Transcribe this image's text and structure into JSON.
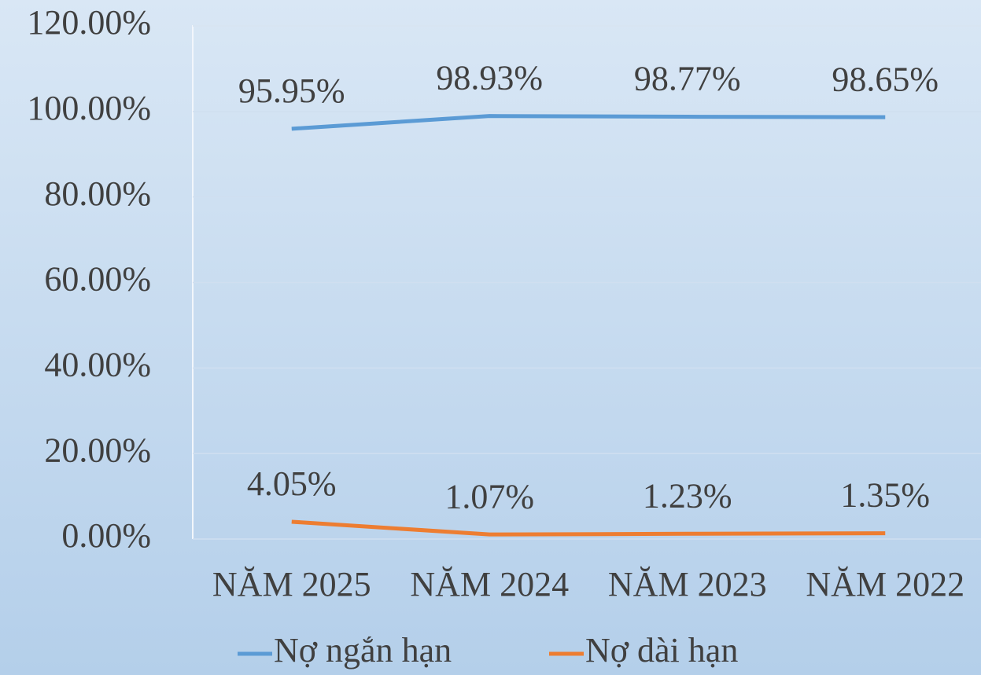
{
  "chart_data": {
    "type": "line",
    "categories": [
      "NĂM 2025",
      "NĂM 2024",
      "NĂM 2023",
      "NĂM 2022"
    ],
    "series": [
      {
        "name": "Nợ ngắn hạn",
        "color": "#5b9bd5",
        "values": [
          95.95,
          98.93,
          98.77,
          98.65
        ],
        "value_labels": [
          "95.95%",
          "98.93%",
          "98.77%",
          "98.65%"
        ]
      },
      {
        "name": "Nợ dài hạn",
        "color": "#ed7d31",
        "values": [
          4.05,
          1.07,
          1.23,
          1.35
        ],
        "value_labels": [
          "4.05%",
          "1.07%",
          "1.23%",
          "1.35%"
        ]
      }
    ],
    "ylim": [
      0,
      120
    ],
    "yticks": [
      {
        "value": 0,
        "label": "0.00%"
      },
      {
        "value": 20,
        "label": "20.00%"
      },
      {
        "value": 40,
        "label": "40.00%"
      },
      {
        "value": 60,
        "label": "60.00%"
      },
      {
        "value": 80,
        "label": "80.00%"
      },
      {
        "value": 100,
        "label": "100.00%"
      },
      {
        "value": 120,
        "label": "120.00%"
      }
    ],
    "grid": true,
    "legend": "bottom"
  }
}
